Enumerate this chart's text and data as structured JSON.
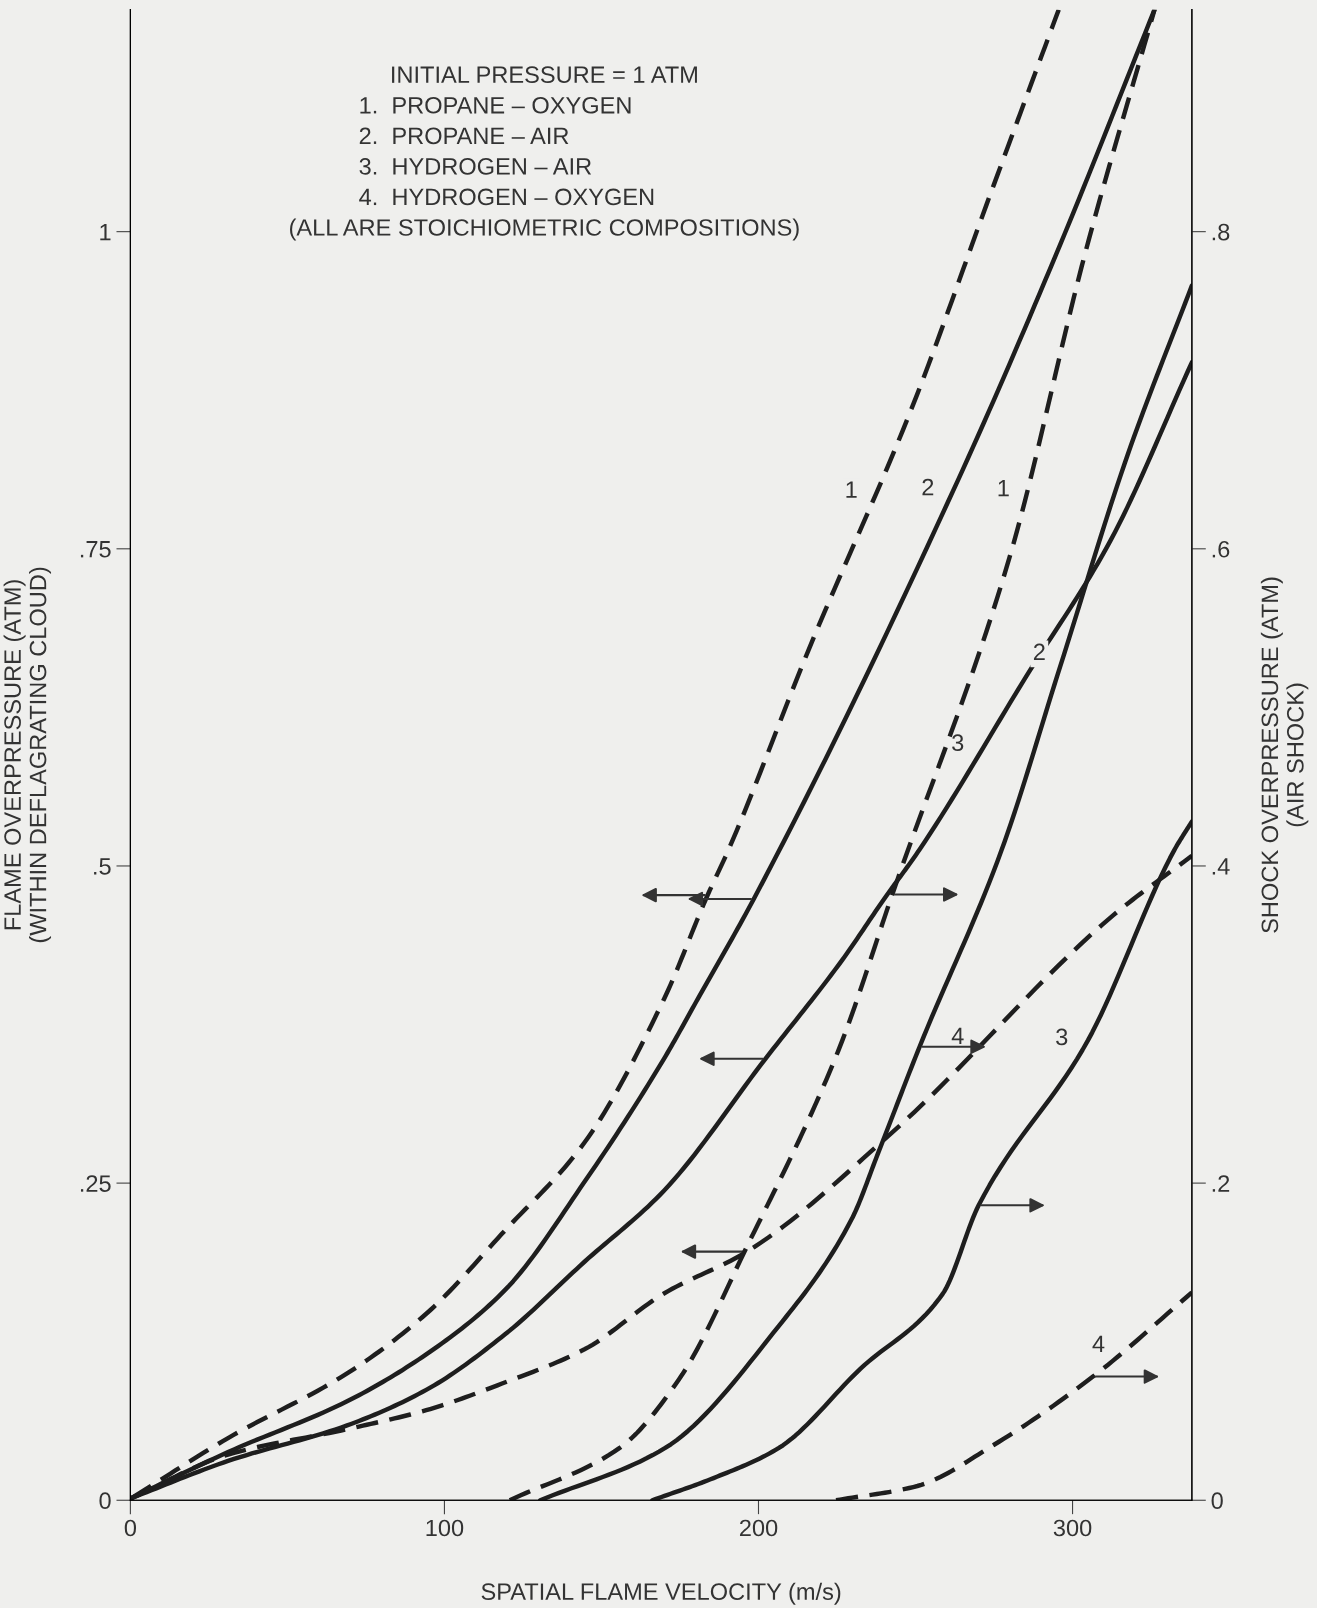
{
  "chart_data": {
    "type": "line",
    "xlabel": "SPATIAL FLAME VELOCITY (m/s)",
    "ylabel": "FLAME OVERPRESSURE (ATM)\n(WITHIN DEFLAGRATING CLOUD)",
    "y2label": "SHOCK OVERPRESSURE (ATM)\n(AIR SHOCK)",
    "xlim": [
      0,
      338
    ],
    "xticks": [
      0,
      100,
      200,
      300
    ],
    "ylim": [
      0,
      1.175
    ],
    "yticks": [
      0,
      {
        "value": 0.25,
        "label": ".25"
      },
      {
        "value": 0.5,
        "label": ".5"
      },
      {
        "value": 0.75,
        "label": ".75"
      },
      1
    ],
    "y2lim": [
      0,
      0.94
    ],
    "y2ticks": [
      0,
      {
        "value": 0.2,
        "label": ".2"
      },
      {
        "value": 0.4,
        "label": ".4"
      },
      {
        "value": 0.6,
        "label": ".6"
      },
      {
        "value": 0.8,
        "label": ".8"
      }
    ],
    "grid": false,
    "legend": false,
    "marker": "none",
    "series": [
      {
        "color": "#1e1e1e",
        "line_style": "dashed",
        "x": [
          0.6,
          31.1,
          69,
          94.2,
          119.4,
          144.6,
          169.9,
          183.8,
          190.5,
          215.9,
          249.3,
          273.9,
          295.6
        ],
        "values": [
          0.002,
          0.049,
          0.1,
          0.147,
          0.213,
          0.282,
          0.395,
          0.477,
          0.513,
          0.67,
          0.864,
          1.03,
          1.175
        ]
      },
      {
        "color": "#1e1e1e",
        "line_style": "solid",
        "x": [
          0.6,
          31.1,
          69,
          94.2,
          119.4,
          144.6,
          169.9,
          181.3,
          198.5,
          263.5,
          296.1,
          326.1
        ],
        "values": [
          0.002,
          0.038,
          0.078,
          0.115,
          0.166,
          0.251,
          0.348,
          0.398,
          0.474,
          0.804,
          0.99,
          1.175
        ]
      },
      {
        "color": "#1e1e1e",
        "line_style": "solid",
        "x": [
          0.6,
          31.1,
          69,
          94.2,
          119.4,
          144.6,
          169.9,
          202.2,
          226.7,
          240,
          251.3,
          285.4,
          312.2,
          338
        ],
        "values": [
          0.002,
          0.031,
          0.059,
          0.087,
          0.131,
          0.188,
          0.244,
          0.348,
          0.426,
          0.474,
          0.513,
          0.65,
          0.757,
          0.897
        ]
      },
      {
        "color": "#1e1e1e",
        "line_style": "dashed",
        "x": [
          0.6,
          31.1,
          69,
          94.2,
          119.4,
          144.6,
          169.9,
          196.3,
          242.6,
          312.9,
          338
        ],
        "values": [
          0.002,
          0.036,
          0.056,
          0.071,
          0.093,
          0.119,
          0.163,
          0.196,
          0.29,
          0.461,
          0.508
        ]
      },
      {
        "color": "#1e1e1e",
        "line_style": "dashed",
        "axis": "y2",
        "x": [
          120.8,
          155.8,
          174.6,
          197.8,
          218,
          226.7,
          242.6,
          280,
          304.1,
          326.1
        ],
        "values": [
          0,
          0.033,
          0.076,
          0.166,
          0.249,
          0.29,
          0.382,
          0.595,
          0.787,
          0.94
        ]
      },
      {
        "color": "#1e1e1e",
        "line_style": "solid",
        "axis": "y2",
        "x": [
          130.5,
          170.3,
          206.5,
          229.6,
          238.3,
          251.3,
          277.4,
          296.1,
          317.5,
          338
        ],
        "values": [
          0,
          0.033,
          0.11,
          0.177,
          0.22,
          0.286,
          0.41,
          0.526,
          0.659,
          0.766
        ]
      },
      {
        "color": "#1e1e1e",
        "line_style": "solid",
        "axis": "y2",
        "x": [
          166.2,
          185.7,
          206.5,
          232.5,
          258.6,
          270.1,
          304.9,
          332.4,
          338
        ],
        "values": [
          0,
          0.014,
          0.033,
          0.083,
          0.13,
          0.186,
          0.29,
          0.41,
          0.428
        ]
      },
      {
        "color": "#1e1e1e",
        "line_style": "dashed",
        "axis": "y2",
        "x": [
          224.7,
          250.6,
          275,
          306.5,
          338
        ],
        "values": [
          0,
          0.009,
          0.035,
          0.078,
          0.131
        ]
      }
    ],
    "annotations": [
      "INITIAL PRESSURE = 1 ATM",
      "1.  PROPANE – OXYGEN",
      "2.  PROPANE – AIR",
      "3.  HYDROGEN – AIR",
      "4.  HYDROGEN – OXYGEN",
      "(ALL ARE STOICHIOMETRIC COMPOSITIONS)",
      "1",
      "2",
      "3",
      "4",
      "1",
      "2",
      "3",
      "4"
    ]
  }
}
